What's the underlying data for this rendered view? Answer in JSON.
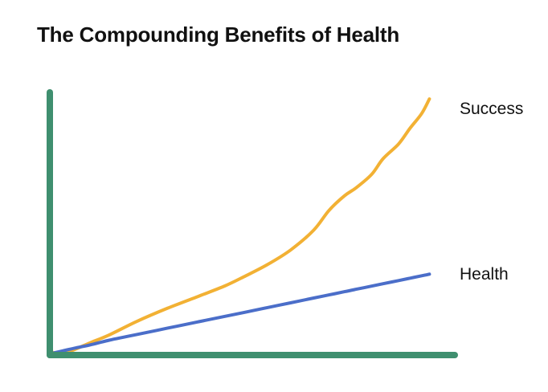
{
  "chart_data": {
    "type": "line",
    "title": "The Compounding Benefits of Health",
    "xlabel": "",
    "ylabel": "",
    "xlim": [
      0,
      100
    ],
    "ylim": [
      0,
      100
    ],
    "grid": false,
    "ticks": false,
    "x": [
      0,
      3,
      6,
      10,
      15,
      22,
      30,
      38,
      45,
      50,
      56,
      62,
      68,
      72,
      76,
      79,
      83,
      86,
      90,
      93,
      96,
      98
    ],
    "series": [
      {
        "name": "Success",
        "color": "#f2b134",
        "values": [
          0.5,
          0,
          1.5,
          4,
          7,
          12,
          17,
          21.5,
          25.5,
          29,
          33.5,
          39,
          46.5,
          54,
          59.5,
          62.5,
          67.5,
          73.5,
          79,
          85,
          90.5,
          96
        ]
      },
      {
        "name": "Health",
        "color": "#4b6ec9",
        "values": [
          0,
          1,
          2,
          3.2,
          5,
          7.1,
          9.5,
          11.9,
          14,
          15.5,
          17.3,
          19.1,
          20.9,
          22.1,
          23.3,
          24.2,
          25.4,
          26.3,
          27.5,
          28.4,
          29.3,
          29.9
        ]
      }
    ],
    "axis_color": "#3f8f6f"
  }
}
